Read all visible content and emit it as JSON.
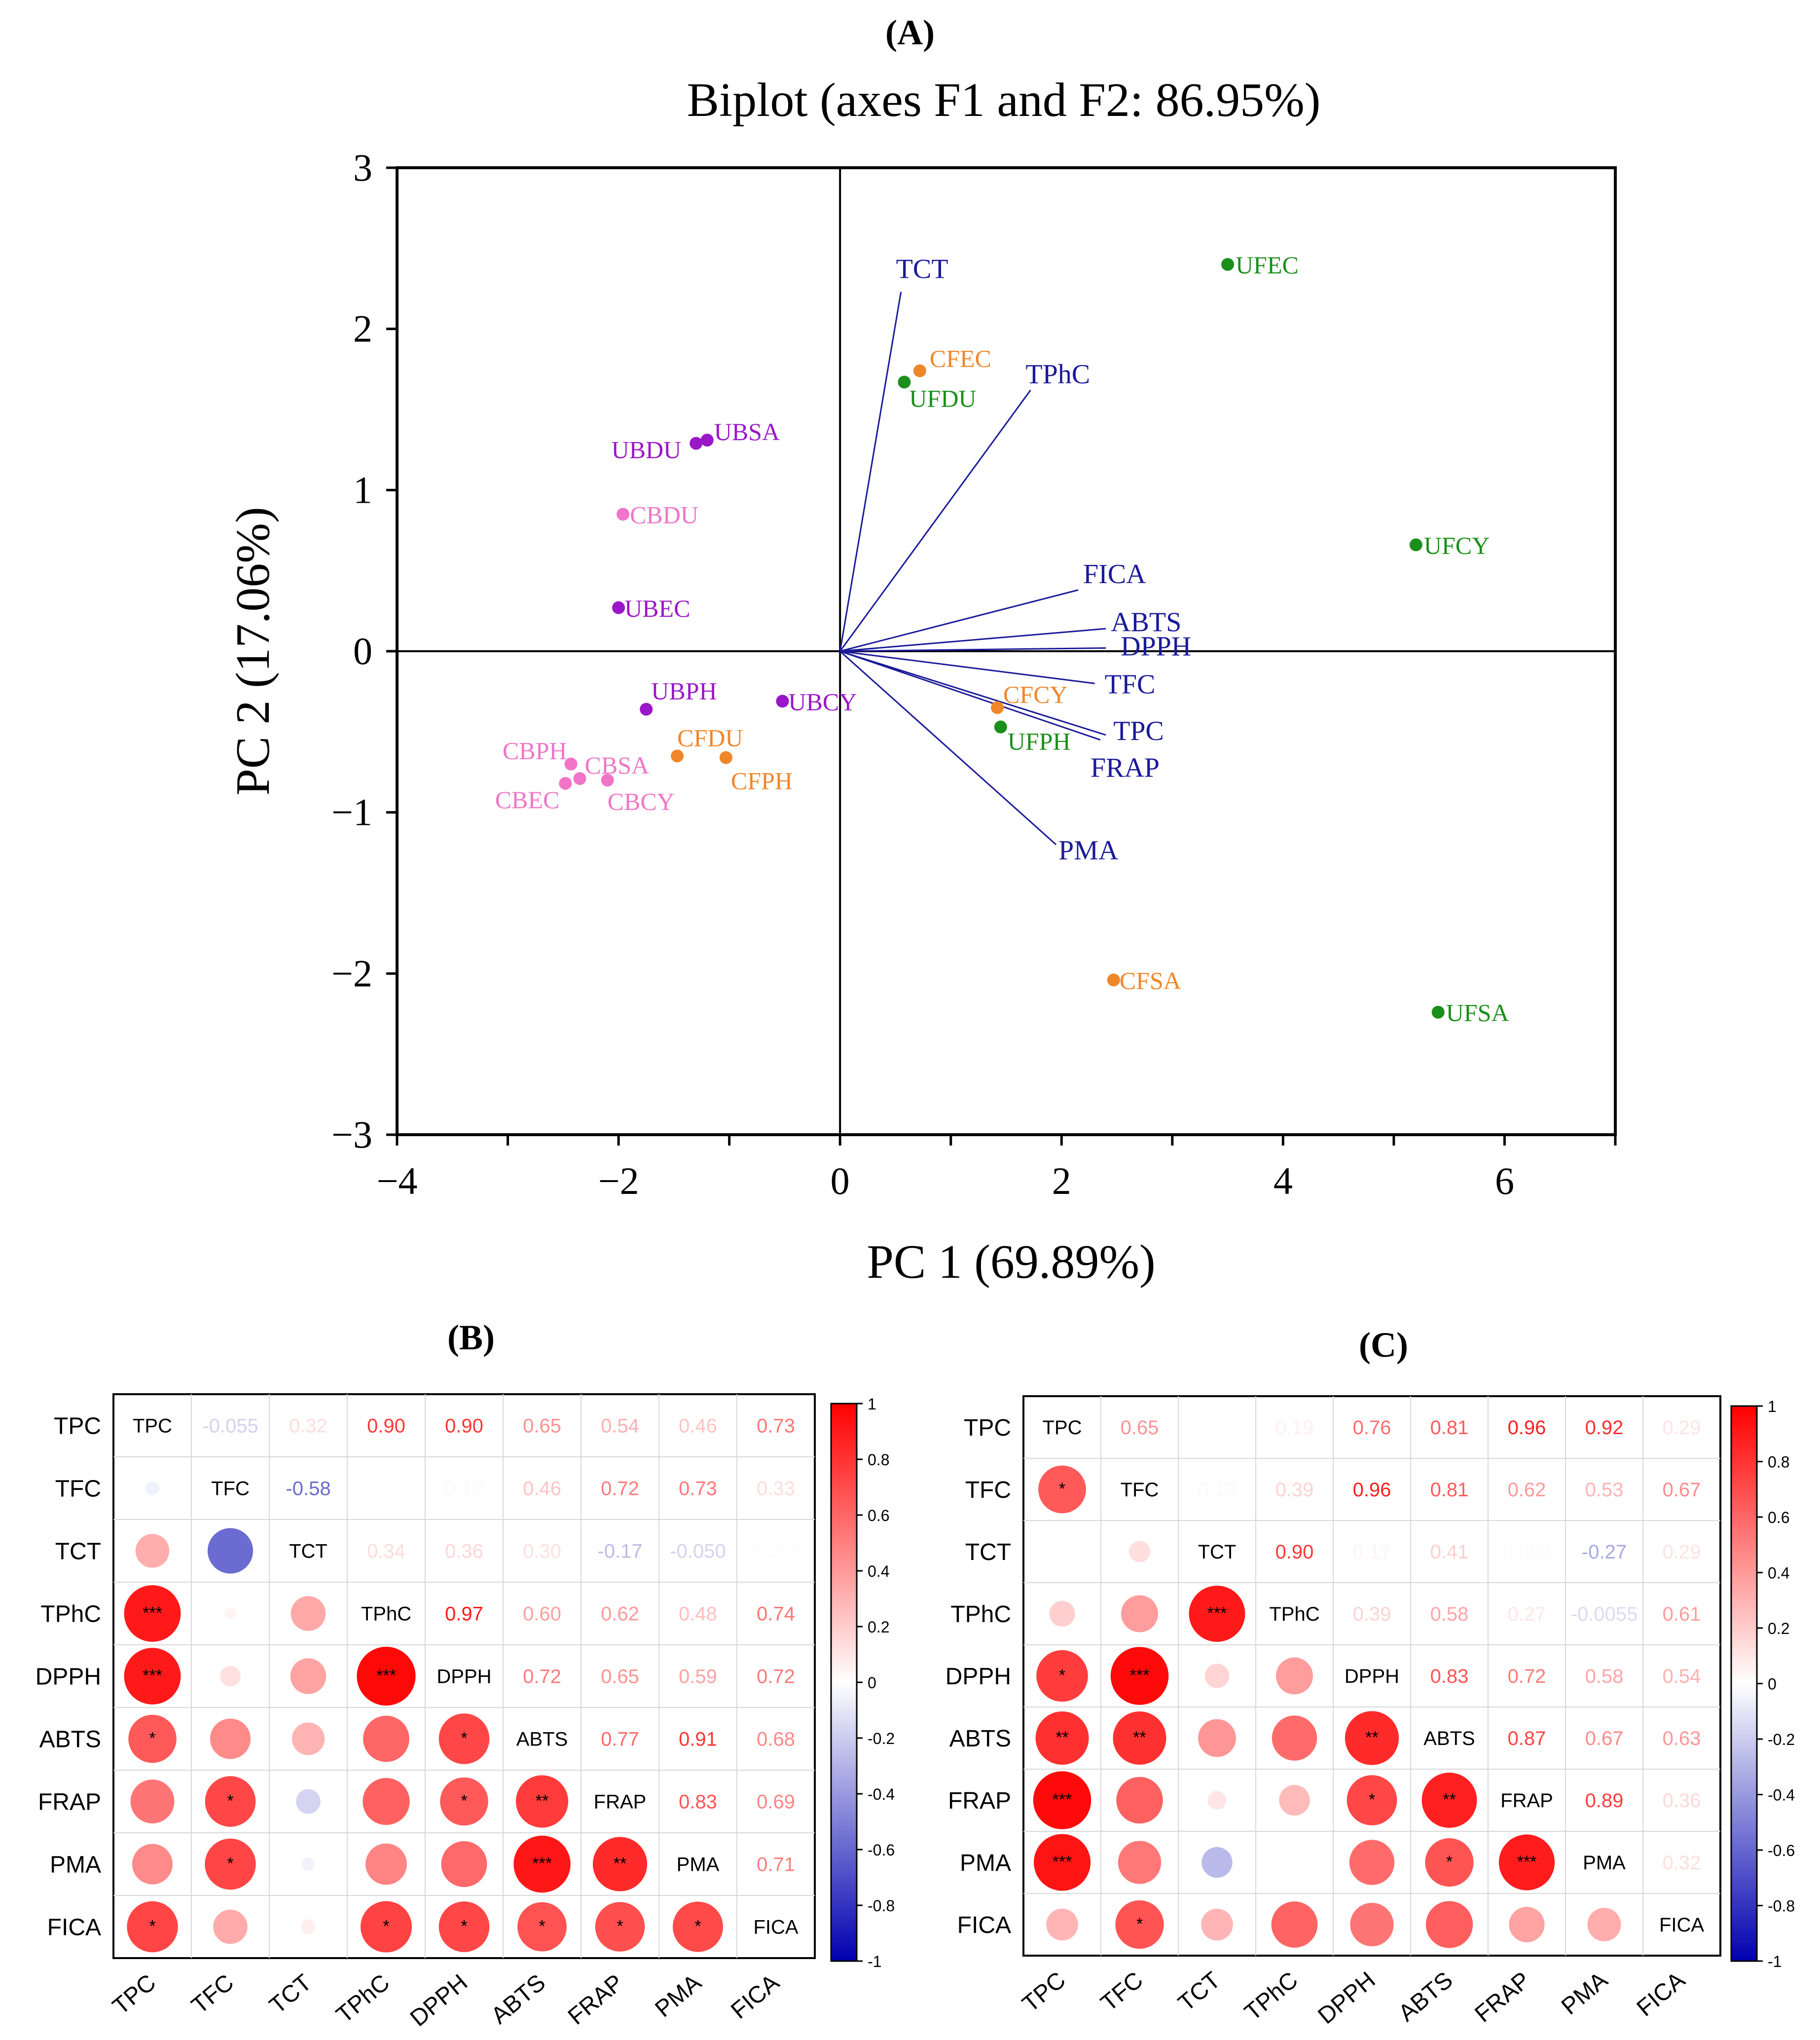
{
  "panels": {
    "a": "(A)",
    "b": "(B)",
    "c": "(C)"
  },
  "colors": {
    "ufd": "#1a8f1a",
    "cf": "#f0862a",
    "ub": "#9a16c8",
    "cb": "#f075c8",
    "vector": "#1a1a9a",
    "pos": "#ff0000",
    "neg": "#0000b0"
  },
  "chart_data": [
    {
      "id": "biplot",
      "type": "scatter",
      "title": "Biplot (axes F1 and F2: 86.95%)",
      "xlabel": "PC 1 (69.89%)",
      "ylabel": "PC 2 (17.06%)",
      "xlim": [
        -4,
        7
      ],
      "ylim": [
        -3,
        3
      ],
      "xticks": [
        "−4",
        "−2",
        "0",
        "2",
        "4",
        "6"
      ],
      "yticks": [
        "−3",
        "−2",
        "−1",
        "0",
        "1",
        "2",
        "3"
      ],
      "vectors": [
        {
          "label": "TCT",
          "x": 0.55,
          "y": 2.23
        },
        {
          "label": "TPhC",
          "x": 1.72,
          "y": 1.62
        },
        {
          "label": "FICA",
          "x": 2.15,
          "y": 0.38
        },
        {
          "label": "ABTS",
          "x": 2.4,
          "y": 0.14
        },
        {
          "label": "DPPH",
          "x": 2.4,
          "y": 0.02
        },
        {
          "label": "TFC",
          "x": 2.3,
          "y": -0.2
        },
        {
          "label": "TPC",
          "x": 2.4,
          "y": -0.52
        },
        {
          "label": "FRAP",
          "x": 2.35,
          "y": -0.55
        },
        {
          "label": "PMA",
          "x": 1.95,
          "y": -1.2
        }
      ],
      "points": [
        {
          "label": "UFEC",
          "x": 3.5,
          "y": 2.4,
          "group": "ufd"
        },
        {
          "label": "UFDU",
          "x": 0.58,
          "y": 1.67,
          "group": "ufd"
        },
        {
          "label": "UFCY",
          "x": 5.2,
          "y": 0.66,
          "group": "ufd"
        },
        {
          "label": "UFPH",
          "x": 1.45,
          "y": -0.47,
          "group": "ufd"
        },
        {
          "label": "UFSA",
          "x": 5.4,
          "y": -2.24,
          "group": "ufd"
        },
        {
          "label": "CFEC",
          "x": 0.72,
          "y": 1.74,
          "group": "cf"
        },
        {
          "label": "CFCY",
          "x": 1.42,
          "y": -0.35,
          "group": "cf"
        },
        {
          "label": "CFDU",
          "x": -1.47,
          "y": -0.65,
          "group": "cf"
        },
        {
          "label": "CFPH",
          "x": -1.03,
          "y": -0.66,
          "group": "cf"
        },
        {
          "label": "CFSA",
          "x": 2.47,
          "y": -2.04,
          "group": "cf"
        },
        {
          "label": "UBSA",
          "x": -1.2,
          "y": 1.31,
          "group": "ub"
        },
        {
          "label": "UBDU",
          "x": -1.3,
          "y": 1.29,
          "group": "ub"
        },
        {
          "label": "UBEC",
          "x": -2.0,
          "y": 0.27,
          "group": "ub"
        },
        {
          "label": "UBPH",
          "x": -1.75,
          "y": -0.36,
          "group": "ub"
        },
        {
          "label": "UBCY",
          "x": -0.52,
          "y": -0.31,
          "group": "ub"
        },
        {
          "label": "CBDU",
          "x": -1.96,
          "y": 0.85,
          "group": "cb"
        },
        {
          "label": "CBPH",
          "x": -2.43,
          "y": -0.7,
          "group": "cb"
        },
        {
          "label": "CBSA",
          "x": -2.35,
          "y": -0.79,
          "group": "cb"
        },
        {
          "label": "CBEC",
          "x": -2.48,
          "y": -0.82,
          "group": "cb"
        },
        {
          "label": "CBCY",
          "x": -2.1,
          "y": -0.8,
          "group": "cb"
        }
      ]
    },
    {
      "id": "corr-b",
      "type": "heatmap",
      "variables": [
        "TPC",
        "TFC",
        "TCT",
        "TPhC",
        "DPPH",
        "ABTS",
        "FRAP",
        "PMA",
        "FICA"
      ],
      "upper": [
        [
          null,
          "-0.055",
          "0.32",
          "0.90",
          "0.90",
          "0.65",
          "0.54",
          "0.46",
          "0.73"
        ],
        [
          null,
          null,
          "-0.58",
          "0.040",
          "0.12",
          "0.46",
          "0.72",
          "0.73",
          "0.33"
        ],
        [
          null,
          null,
          null,
          "0.34",
          "0.36",
          "0.30",
          "-0.17",
          "-0.050",
          "0.062"
        ],
        [
          null,
          null,
          null,
          null,
          "0.97",
          "0.60",
          "0.62",
          "0.48",
          "0.74"
        ],
        [
          null,
          null,
          null,
          null,
          null,
          "0.72",
          "0.65",
          "0.59",
          "0.72"
        ],
        [
          null,
          null,
          null,
          null,
          null,
          null,
          "0.77",
          "0.91",
          "0.68"
        ],
        [
          null,
          null,
          null,
          null,
          null,
          null,
          null,
          "0.83",
          "0.69"
        ],
        [
          null,
          null,
          null,
          null,
          null,
          null,
          null,
          null,
          "0.71"
        ]
      ],
      "values": [
        [
          1,
          -0.055,
          0.32,
          0.9,
          0.9,
          0.65,
          0.54,
          0.46,
          0.73
        ],
        [
          -0.055,
          1,
          -0.58,
          0.04,
          0.12,
          0.46,
          0.72,
          0.73,
          0.33
        ],
        [
          0.32,
          -0.58,
          1,
          0.34,
          0.36,
          0.3,
          -0.17,
          -0.05,
          0.062
        ],
        [
          0.9,
          0.04,
          0.34,
          1,
          0.97,
          0.6,
          0.62,
          0.48,
          0.74
        ],
        [
          0.9,
          0.12,
          0.36,
          0.97,
          1,
          0.72,
          0.65,
          0.59,
          0.72
        ],
        [
          0.65,
          0.46,
          0.3,
          0.6,
          0.72,
          1,
          0.77,
          0.91,
          0.68
        ],
        [
          0.54,
          0.72,
          -0.17,
          0.62,
          0.65,
          0.77,
          1,
          0.83,
          0.69
        ],
        [
          0.46,
          0.73,
          -0.05,
          0.48,
          0.59,
          0.91,
          0.83,
          1,
          0.71
        ],
        [
          0.73,
          0.33,
          0.062,
          0.74,
          0.72,
          0.68,
          0.69,
          0.71,
          1
        ]
      ],
      "stars": [
        [],
        [
          ""
        ],
        [
          "",
          ""
        ],
        [
          "***",
          "",
          ""
        ],
        [
          "***",
          "",
          "",
          "***"
        ],
        [
          "*",
          "",
          "",
          "",
          "*"
        ],
        [
          "",
          "*",
          "",
          "",
          "*",
          "**"
        ],
        [
          "",
          "*",
          "",
          "",
          "",
          "***",
          "**"
        ],
        [
          "*",
          "",
          "",
          "*",
          "*",
          "*",
          "*",
          "*"
        ]
      ],
      "colorbar": [
        "1",
        "0.8",
        "0.6",
        "0.4",
        "0.2",
        "0",
        "-0.2",
        "-0.4",
        "-0.6",
        "-0.8",
        "-1"
      ]
    },
    {
      "id": "corr-c",
      "type": "heatmap",
      "variables": [
        "TPC",
        "TFC",
        "TCT",
        "TPhC",
        "DPPH",
        "ABTS",
        "FRAP",
        "PMA",
        "FICA"
      ],
      "upper": [
        [
          null,
          "0.65",
          "0.0023",
          "0.19",
          "0.76",
          "0.81",
          "0.96",
          "0.92",
          "0.29"
        ],
        [
          null,
          null,
          "0.13",
          "0.39",
          "0.96",
          "0.81",
          "0.62",
          "0.53",
          "0.67"
        ],
        [
          null,
          null,
          null,
          "0.90",
          "0.17",
          "0.41",
          "0.099",
          "-0.27",
          "0.29"
        ],
        [
          null,
          null,
          null,
          null,
          "0.39",
          "0.58",
          "0.27",
          "-0.0055",
          "0.61"
        ],
        [
          null,
          null,
          null,
          null,
          null,
          "0.83",
          "0.72",
          "0.58",
          "0.54"
        ],
        [
          null,
          null,
          null,
          null,
          null,
          null,
          "0.87",
          "0.67",
          "0.63"
        ],
        [
          null,
          null,
          null,
          null,
          null,
          null,
          null,
          "0.89",
          "0.36"
        ],
        [
          null,
          null,
          null,
          null,
          null,
          null,
          null,
          null,
          "0.32"
        ]
      ],
      "values": [
        [
          1,
          0.65,
          0.0023,
          0.19,
          0.76,
          0.81,
          0.96,
          0.92,
          0.29
        ],
        [
          0.65,
          1,
          0.13,
          0.39,
          0.96,
          0.81,
          0.62,
          0.53,
          0.67
        ],
        [
          0.0023,
          0.13,
          1,
          0.9,
          0.17,
          0.41,
          0.099,
          -0.27,
          0.29
        ],
        [
          0.19,
          0.39,
          0.9,
          1,
          0.39,
          0.58,
          0.27,
          -0.0055,
          0.61
        ],
        [
          0.76,
          0.96,
          0.17,
          0.39,
          1,
          0.83,
          0.72,
          0.58,
          0.54
        ],
        [
          0.81,
          0.81,
          0.41,
          0.58,
          0.83,
          1,
          0.87,
          0.67,
          0.63
        ],
        [
          0.96,
          0.62,
          0.099,
          0.27,
          0.72,
          0.87,
          1,
          0.89,
          0.36
        ],
        [
          0.92,
          0.53,
          -0.27,
          -0.0055,
          0.58,
          0.67,
          0.89,
          1,
          0.32
        ],
        [
          0.29,
          0.67,
          0.29,
          0.61,
          0.54,
          0.63,
          0.36,
          0.32,
          1
        ]
      ],
      "stars": [
        [],
        [
          "*"
        ],
        [
          "",
          ""
        ],
        [
          "",
          "",
          "***"
        ],
        [
          "*",
          "***",
          "",
          ""
        ],
        [
          "**",
          "**",
          "",
          "",
          "**"
        ],
        [
          "***",
          "",
          "",
          "",
          "*",
          "**"
        ],
        [
          "***",
          "",
          "",
          "",
          "",
          "*",
          "***"
        ],
        [
          "",
          "*",
          "",
          "",
          "",
          "",
          "",
          ""
        ]
      ],
      "colorbar": [
        "1",
        "0.8",
        "0.6",
        "0.4",
        "0.2",
        "0",
        "-0.2",
        "-0.4",
        "-0.6",
        "-0.8",
        "-1"
      ]
    }
  ]
}
